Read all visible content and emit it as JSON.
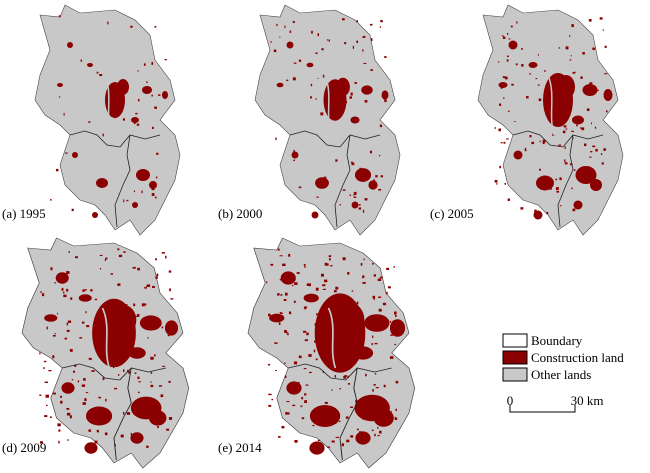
{
  "panels": [
    {
      "label": "(a) 1995"
    },
    {
      "label": "(b) 2000"
    },
    {
      "label": "(c) 2005"
    },
    {
      "label": "(d) 2009"
    },
    {
      "label": "(e) 2014"
    }
  ],
  "legend": [
    {
      "label": "Boundary"
    },
    {
      "label": "Construction land"
    },
    {
      "label": "Other lands"
    }
  ],
  "scale_bar": {
    "start": "0",
    "end": "30 km"
  }
}
